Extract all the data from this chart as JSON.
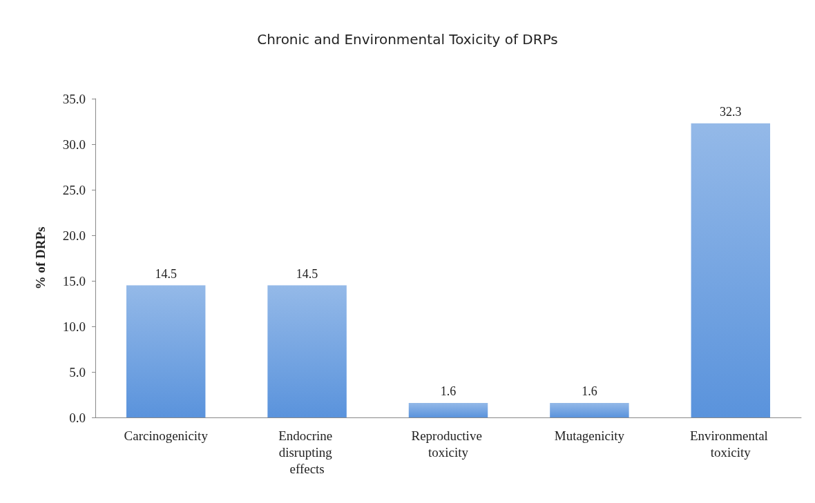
{
  "chart_data": {
    "type": "bar",
    "title": "Chronic and Environmental Toxicity of DRPs",
    "ylabel": "% of DRPs",
    "categories": [
      "Carcinogenicity",
      "Endocrine disrupting effects",
      "Reproductive toxicity",
      "Mutagenicity",
      "Environmental toxicity"
    ],
    "values": [
      14.5,
      14.5,
      1.6,
      1.6,
      32.3
    ],
    "color": "#5a93dc",
    "ylim": [
      0,
      35
    ],
    "yticks": [
      {
        "value": 0,
        "label": "0.0"
      },
      {
        "value": 5,
        "label": "5.0"
      },
      {
        "value": 10,
        "label": "10.0"
      },
      {
        "value": 15,
        "label": "15.0"
      },
      {
        "value": 20,
        "label": "20.0"
      },
      {
        "value": 25,
        "label": "25.0"
      },
      {
        "value": 30,
        "label": "30.0"
      },
      {
        "value": 35,
        "label": "35.0"
      }
    ],
    "grid": false,
    "data_labels": true
  }
}
